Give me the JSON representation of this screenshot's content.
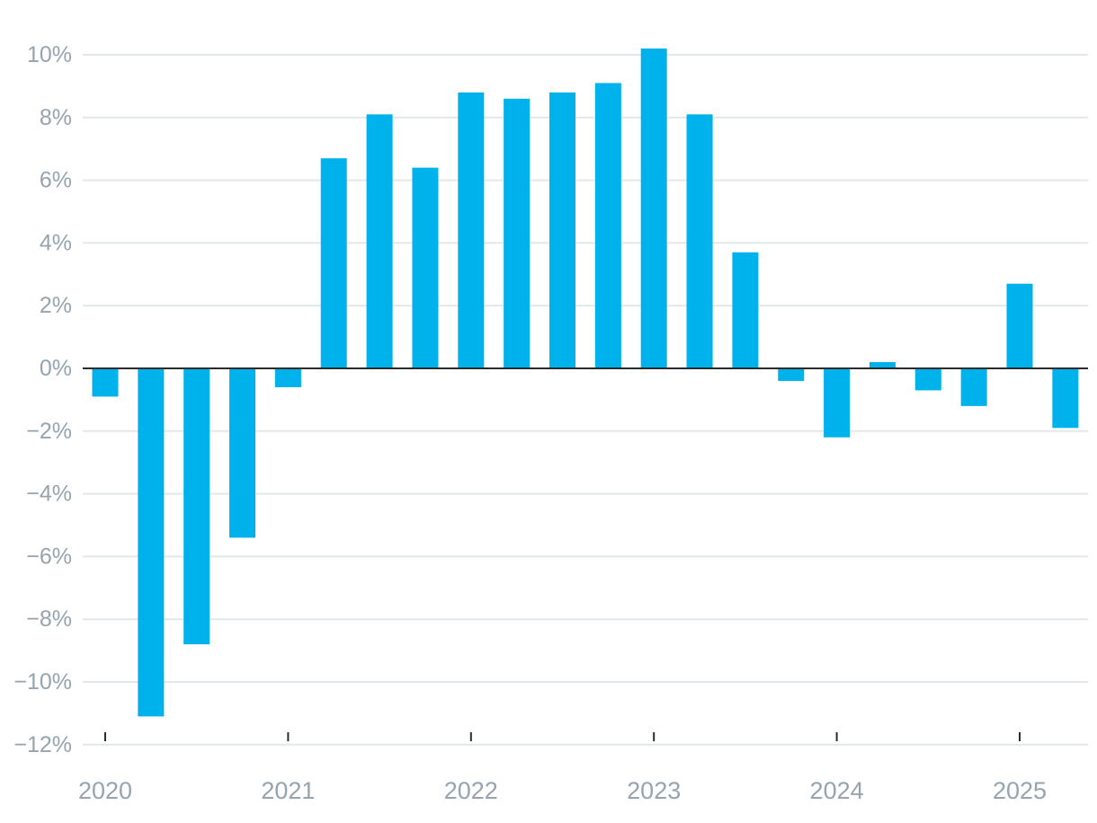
{
  "colors": {
    "bar": "#00b2ec",
    "grid": "#e4e7e9",
    "zero_line": "#2b2b2b",
    "tick_mark": "#2b2b2b",
    "tick_label": "#95a4ae",
    "background": "#ffffff"
  },
  "chart_data": {
    "type": "bar",
    "title": "",
    "xlabel": "",
    "ylabel": "",
    "ylim": [
      -12,
      10.4
    ],
    "grid": true,
    "legend": "none",
    "y_ticks": [
      {
        "value": 10,
        "label": "10%"
      },
      {
        "value": 8,
        "label": "8%"
      },
      {
        "value": 6,
        "label": "6%"
      },
      {
        "value": 4,
        "label": "4%"
      },
      {
        "value": 2,
        "label": "2%"
      },
      {
        "value": 0,
        "label": "0%"
      },
      {
        "value": -2,
        "label": "−2%"
      },
      {
        "value": -4,
        "label": "−4%"
      },
      {
        "value": -6,
        "label": "−6%"
      },
      {
        "value": -8,
        "label": "−8%"
      },
      {
        "value": -10,
        "label": "−10%"
      },
      {
        "value": -12,
        "label": "−12%"
      }
    ],
    "x_ticks": [
      {
        "value": 2020.0,
        "label": "2020"
      },
      {
        "value": 2021.0,
        "label": "2021"
      },
      {
        "value": 2022.0,
        "label": "2022"
      },
      {
        "value": 2023.0,
        "label": "2023"
      },
      {
        "value": 2024.0,
        "label": "2024"
      },
      {
        "value": 2025.0,
        "label": "2025"
      }
    ],
    "categories": [
      "2020-Q1",
      "2020-Q2",
      "2020-Q3",
      "2020-Q4",
      "2021-Q1",
      "2021-Q2",
      "2021-Q3",
      "2021-Q4",
      "2022-Q1",
      "2022-Q2",
      "2022-Q3",
      "2022-Q4",
      "2023-Q1",
      "2023-Q2",
      "2023-Q3",
      "2023-Q4",
      "2024-Q1",
      "2024-Q2",
      "2024-Q3",
      "2024-Q4",
      "2025-Q1",
      "2025-Q2"
    ],
    "x": [
      2020.0,
      2020.25,
      2020.5,
      2020.75,
      2021.0,
      2021.25,
      2021.5,
      2021.75,
      2022.0,
      2022.25,
      2022.5,
      2022.75,
      2023.0,
      2023.25,
      2023.5,
      2023.75,
      2024.0,
      2024.25,
      2024.5,
      2024.75,
      2025.0,
      2025.25
    ],
    "values": [
      -0.9,
      -11.1,
      -8.8,
      -5.4,
      -0.6,
      6.7,
      8.1,
      6.4,
      8.8,
      8.6,
      8.8,
      9.1,
      10.2,
      8.1,
      3.7,
      -0.4,
      -2.2,
      0.2,
      -0.7,
      -1.2,
      2.7,
      -1.9
    ]
  }
}
